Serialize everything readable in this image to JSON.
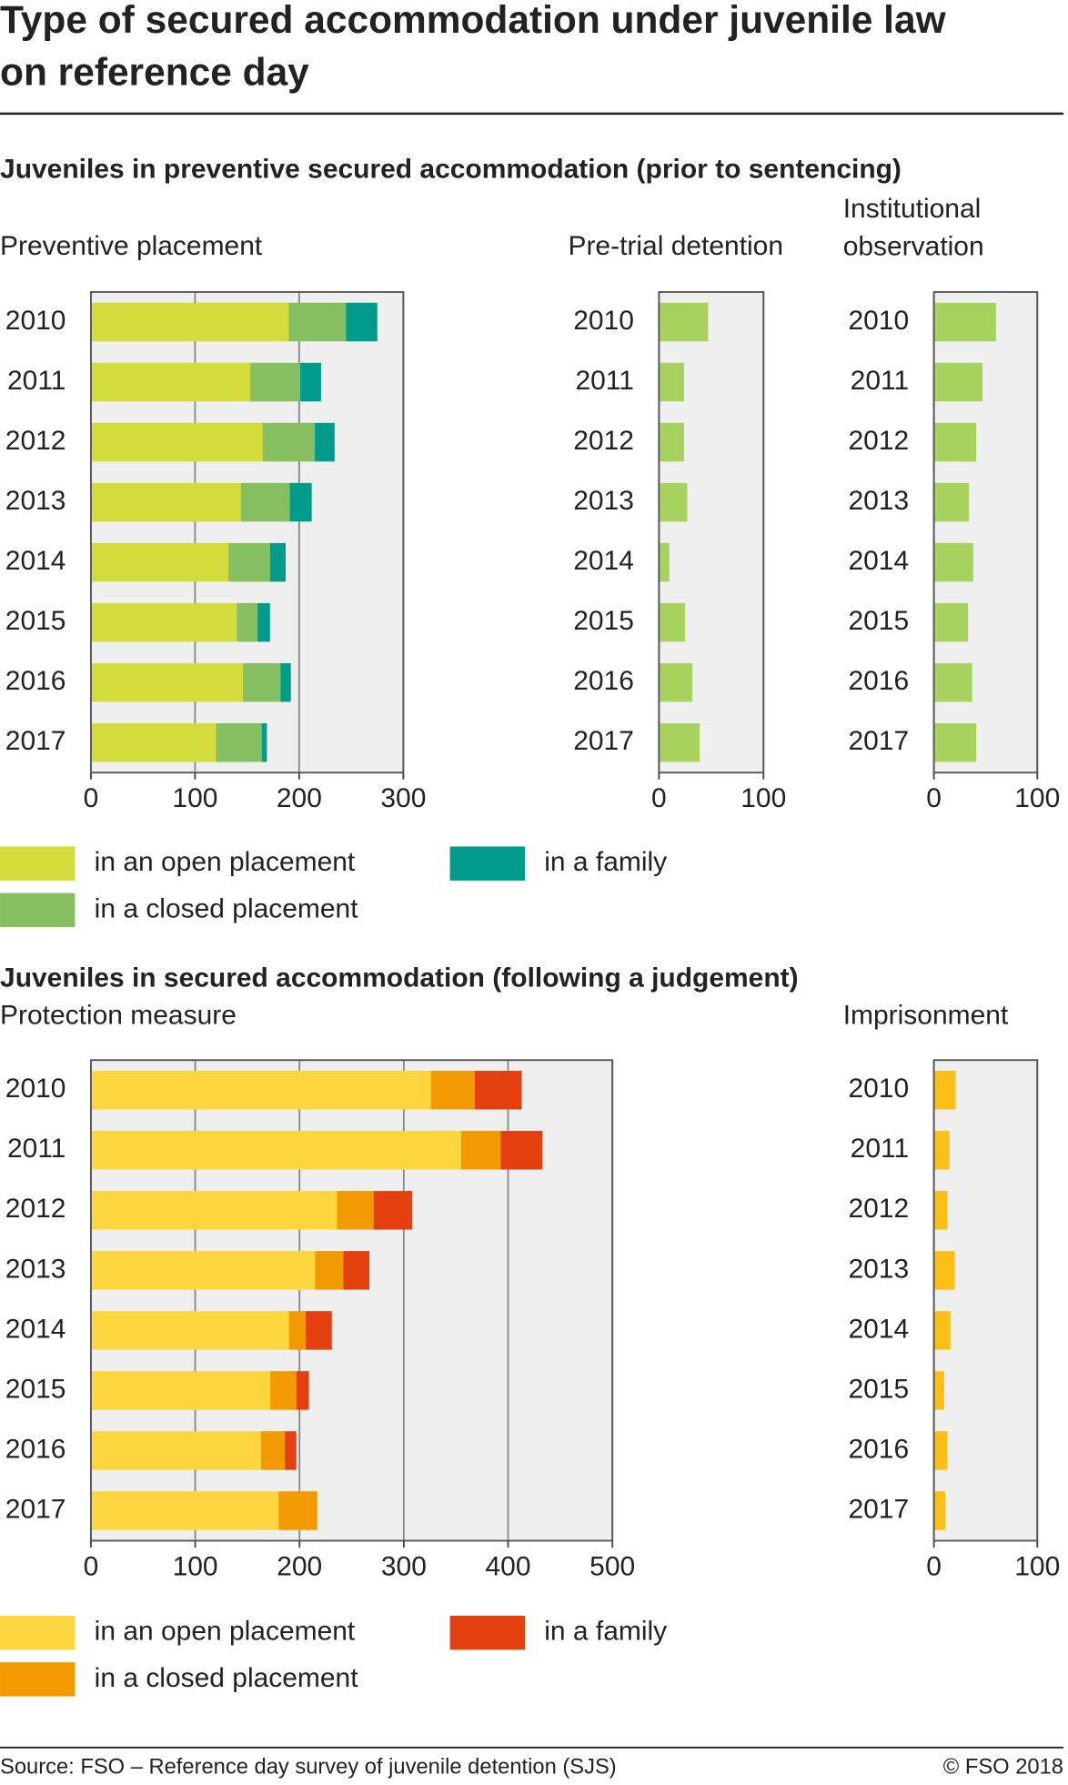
{
  "title": "Type of secured accommodation under juvenile law on reference day",
  "headings": [
    "Juveniles in preventive secured accommodation (prior to sentencing)",
    "Juveniles in secured accommodation (following a judgement)"
  ],
  "chart_data": [
    {
      "type": "barh",
      "title": "Preventive placement",
      "categories": [
        "2010",
        "2011",
        "2012",
        "2013",
        "2014",
        "2015",
        "2016",
        "2017"
      ],
      "series": [
        {
          "name": "in an open placement",
          "color": "#d4dc3c",
          "values": [
            190,
            153,
            165,
            144,
            132,
            140,
            146,
            120
          ]
        },
        {
          "name": "in a closed placement",
          "color": "#86bf5f",
          "values": [
            55,
            48,
            50,
            47,
            40,
            20,
            36,
            44
          ]
        },
        {
          "name": "in a family",
          "color": "#009b8a",
          "values": [
            30,
            20,
            19,
            21,
            15,
            12,
            10,
            5
          ]
        }
      ],
      "xlim": [
        0,
        300
      ],
      "xticks": [
        0,
        100,
        200,
        300
      ],
      "grid": true
    },
    {
      "type": "barh",
      "title": "Pre-trial detention",
      "categories": [
        "2010",
        "2011",
        "2012",
        "2013",
        "2014",
        "2015",
        "2016",
        "2017"
      ],
      "values": [
        47,
        24,
        24,
        27,
        10,
        25,
        32,
        39
      ],
      "color": "#a8d25e",
      "xlim": [
        0,
        100
      ],
      "xticks": [
        0,
        100
      ],
      "grid": true
    },
    {
      "type": "barh",
      "title": "Institutional observation",
      "categories": [
        "2010",
        "2011",
        "2012",
        "2013",
        "2014",
        "2015",
        "2016",
        "2017"
      ],
      "values": [
        60,
        47,
        41,
        34,
        38,
        33,
        37,
        41
      ],
      "color": "#a8d25e",
      "xlim": [
        0,
        100
      ],
      "xticks": [
        0,
        100
      ],
      "grid": true
    },
    {
      "type": "barh",
      "title": "Protection measure",
      "categories": [
        "2010",
        "2011",
        "2012",
        "2013",
        "2014",
        "2015",
        "2016",
        "2017"
      ],
      "series": [
        {
          "name": "in an open placement",
          "color": "#fdd63e",
          "values": [
            326,
            355,
            236,
            215,
            190,
            172,
            163,
            180
          ]
        },
        {
          "name": "in a closed placement",
          "color": "#f39a00",
          "values": [
            42,
            38,
            35,
            27,
            16,
            25,
            23,
            37
          ]
        },
        {
          "name": "in a family",
          "color": "#e43f0f",
          "values": [
            45,
            40,
            37,
            25,
            25,
            12,
            11,
            0
          ]
        }
      ],
      "xlim": [
        0,
        500
      ],
      "xticks": [
        0,
        100,
        200,
        300,
        400,
        500
      ],
      "grid": true
    },
    {
      "type": "barh",
      "title": "Imprisonment",
      "categories": [
        "2010",
        "2011",
        "2012",
        "2013",
        "2014",
        "2015",
        "2016",
        "2017"
      ],
      "values": [
        21,
        15,
        13,
        20,
        16,
        10,
        13,
        11
      ],
      "color": "#fbbf17",
      "xlim": [
        0,
        100
      ],
      "xticks": [
        0,
        100
      ],
      "grid": true
    }
  ],
  "source": "Source: FSO – Reference day survey of juvenile detention (SJS)",
  "copyright": "© FSO 2018"
}
